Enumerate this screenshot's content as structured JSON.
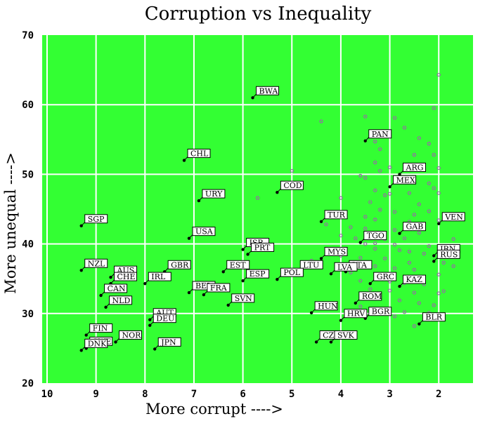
{
  "chart_data": {
    "type": "scatter",
    "title": "Corruption vs Inequality",
    "xlabel": "More corrupt ---->",
    "ylabel": "More unequal ---->",
    "xlim": [
      10.1,
      1.3
    ],
    "ylim": [
      20,
      70
    ],
    "x_ticks": [
      "10",
      "9",
      "8",
      "7",
      "6",
      "5",
      "4",
      "3",
      "2"
    ],
    "x_tick_values": [
      10,
      9,
      8,
      7,
      6,
      5,
      4,
      3,
      2
    ],
    "y_ticks": [
      "20",
      "30",
      "40",
      "50",
      "60",
      "70"
    ],
    "y_tick_values": [
      20,
      30,
      40,
      50,
      60,
      70
    ],
    "grid": true,
    "background_color": "#33ff33",
    "grid_color": "#ffffff",
    "point_color": "#000000",
    "unlabeled_color": "#9966aa",
    "labeled_points": [
      {
        "label": "BWA",
        "x": 5.8,
        "y": 61
      },
      {
        "label": "PAN",
        "x": 3.5,
        "y": 54.8
      },
      {
        "label": "CHL",
        "x": 7.2,
        "y": 52
      },
      {
        "label": "ARG",
        "x": 2.8,
        "y": 50
      },
      {
        "label": "MEX",
        "x": 3.0,
        "y": 48.2
      },
      {
        "label": "COD",
        "x": 5.3,
        "y": 47.4
      },
      {
        "label": "URY",
        "x": 6.9,
        "y": 46.2
      },
      {
        "label": "TUR",
        "x": 4.4,
        "y": 43.2
      },
      {
        "label": "VEN",
        "x": 2.0,
        "y": 42.9
      },
      {
        "label": "SGP",
        "x": 9.3,
        "y": 42.6
      },
      {
        "label": "GAB",
        "x": 2.8,
        "y": 41.5
      },
      {
        "label": "USA",
        "x": 7.1,
        "y": 40.8
      },
      {
        "label": "TGO",
        "x": 3.6,
        "y": 40.2
      },
      {
        "label": "ISR",
        "x": 6.0,
        "y": 39.2
      },
      {
        "label": "PRT",
        "x": 5.9,
        "y": 38.5
      },
      {
        "label": "IRN",
        "x": 2.1,
        "y": 38.3
      },
      {
        "label": "RUS",
        "x": 2.1,
        "y": 37.5
      },
      {
        "label": "MYS",
        "x": 4.4,
        "y": 37.9
      },
      {
        "label": "NZL",
        "x": 9.3,
        "y": 36.2
      },
      {
        "label": "GBR",
        "x": 7.6,
        "y": 36
      },
      {
        "label": "EST",
        "x": 6.4,
        "y": 36
      },
      {
        "label": "LTU",
        "x": 4.9,
        "y": 36.0
      },
      {
        "label": "LTA",
        "x": 3.9,
        "y": 36.0
      },
      {
        "label": "AUS",
        "x": 8.7,
        "y": 35.2
      },
      {
        "label": "LVA",
        "x": 4.2,
        "y": 35.7
      },
      {
        "label": "ESP",
        "x": 6.0,
        "y": 34.7
      },
      {
        "label": "POL",
        "x": 5.3,
        "y": 34.9
      },
      {
        "label": "IRL",
        "x": 8.0,
        "y": 34.3
      },
      {
        "label": "CHE",
        "x": 8.7,
        "y": 34.3
      },
      {
        "label": "GRC",
        "x": 3.4,
        "y": 34.3
      },
      {
        "label": "KAZ",
        "x": 2.8,
        "y": 33.9
      },
      {
        "label": "BEL",
        "x": 7.1,
        "y": 33
      },
      {
        "label": "FRA",
        "x": 6.8,
        "y": 32.7
      },
      {
        "label": "CAN",
        "x": 8.9,
        "y": 32.6
      },
      {
        "label": "SVN",
        "x": 6.3,
        "y": 31.2
      },
      {
        "label": "NLD",
        "x": 8.8,
        "y": 30.9
      },
      {
        "label": "ROM",
        "x": 3.7,
        "y": 31.5
      },
      {
        "label": "HUN",
        "x": 4.6,
        "y": 30.1
      },
      {
        "label": "AUT",
        "x": 7.9,
        "y": 29.1
      },
      {
        "label": "BGR",
        "x": 3.5,
        "y": 29.3
      },
      {
        "label": "HRV",
        "x": 4.0,
        "y": 29.0
      },
      {
        "label": "DEU",
        "x": 7.9,
        "y": 28.3
      },
      {
        "label": "BLR",
        "x": 2.4,
        "y": 28.5
      },
      {
        "label": "FIN",
        "x": 9.2,
        "y": 26.9
      },
      {
        "label": "NOR",
        "x": 8.6,
        "y": 25.9
      },
      {
        "label": "CZE",
        "x": 4.5,
        "y": 25.9
      },
      {
        "label": "SVK",
        "x": 4.2,
        "y": 25.9
      },
      {
        "label": "SWE",
        "x": 9.2,
        "y": 25.0
      },
      {
        "label": "DNK",
        "x": 9.3,
        "y": 24.7
      },
      {
        "label": "JPN",
        "x": 7.8,
        "y": 24.9
      }
    ],
    "unlabeled_points": [
      [
        2.0,
        64.3
      ],
      [
        2.1,
        59.5
      ],
      [
        2.9,
        58.1
      ],
      [
        3.5,
        58.3
      ],
      [
        4.4,
        57.6
      ],
      [
        2.7,
        56.7
      ],
      [
        2.4,
        55.2
      ],
      [
        3.3,
        54.7
      ],
      [
        2.2,
        54.4
      ],
      [
        3.2,
        53.6
      ],
      [
        2.5,
        52.8
      ],
      [
        2.1,
        52.8
      ],
      [
        3.3,
        51.7
      ],
      [
        3.0,
        51.0
      ],
      [
        2.6,
        51.0
      ],
      [
        2.0,
        50.9
      ],
      [
        5.0,
        50.5
      ],
      [
        3.2,
        50.5
      ],
      [
        3.6,
        49.8
      ],
      [
        3.5,
        49.5
      ],
      [
        2.7,
        49.2
      ],
      [
        2.2,
        48.7
      ],
      [
        2.1,
        48.0
      ],
      [
        3.3,
        47.7
      ],
      [
        3.0,
        47.2
      ],
      [
        3.1,
        47.0
      ],
      [
        2.6,
        47.3
      ],
      [
        2.0,
        47.3
      ],
      [
        4.0,
        46.6
      ],
      [
        5.7,
        46.6
      ],
      [
        3.4,
        46.0
      ],
      [
        2.4,
        45.7
      ],
      [
        3.2,
        44.9
      ],
      [
        2.9,
        44.6
      ],
      [
        2.2,
        44.7
      ],
      [
        2.5,
        44.2
      ],
      [
        3.5,
        43.9
      ],
      [
        3.3,
        43.5
      ],
      [
        2.6,
        43.2
      ],
      [
        2.0,
        43.4
      ],
      [
        4.3,
        42.8
      ],
      [
        3.8,
        42.4
      ],
      [
        3.5,
        42.2
      ],
      [
        2.9,
        42.0
      ],
      [
        2.4,
        41.6
      ],
      [
        4.0,
        41.2
      ],
      [
        3.7,
        40.8
      ],
      [
        3.1,
        40.7
      ],
      [
        2.7,
        40.8
      ],
      [
        1.7,
        40.7
      ],
      [
        3.5,
        40.0
      ],
      [
        3.3,
        40.1
      ],
      [
        2.9,
        39.9
      ],
      [
        2.2,
        39.7
      ],
      [
        1.8,
        39.6
      ],
      [
        3.9,
        39.3
      ],
      [
        3.3,
        39.3
      ],
      [
        2.8,
        39.1
      ],
      [
        2.6,
        38.9
      ],
      [
        2.3,
        38.6
      ],
      [
        4.3,
        38.7
      ],
      [
        4.0,
        38.3
      ],
      [
        3.6,
        38.0
      ],
      [
        3.1,
        37.9
      ],
      [
        2.6,
        37.3
      ],
      [
        1.9,
        37.3
      ],
      [
        1.7,
        36.8
      ],
      [
        4.6,
        37.6
      ],
      [
        3.7,
        37.0
      ],
      [
        3.3,
        36.8
      ],
      [
        2.9,
        36.5
      ],
      [
        2.5,
        36.3
      ],
      [
        3.8,
        35.9
      ],
      [
        3.2,
        35.6
      ],
      [
        2.9,
        35.2
      ],
      [
        2.5,
        35.0
      ],
      [
        2.0,
        35.6
      ],
      [
        3.6,
        34.7
      ],
      [
        3.0,
        34.6
      ],
      [
        2.7,
        34.4
      ],
      [
        2.3,
        34.2
      ],
      [
        1.9,
        33.2
      ],
      [
        3.4,
        33.5
      ],
      [
        3.0,
        33.3
      ],
      [
        2.5,
        33.0
      ],
      [
        2.0,
        32.9
      ],
      [
        3.3,
        32.1
      ],
      [
        2.8,
        31.9
      ],
      [
        2.4,
        31.5
      ],
      [
        2.1,
        31.2
      ],
      [
        3.6,
        31.0
      ],
      [
        3.2,
        30.4
      ],
      [
        2.7,
        30.2
      ],
      [
        2.2,
        30.1
      ],
      [
        2.9,
        29.6
      ],
      [
        2.5,
        28.2
      ]
    ]
  }
}
